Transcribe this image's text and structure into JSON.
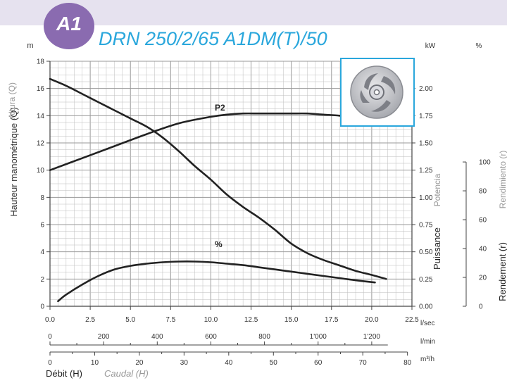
{
  "header": {
    "badge": "A1",
    "model": "DRN 250/2/65 A1DM(T)/50"
  },
  "icons": {
    "impeller": "impeller-icon"
  },
  "colors": {
    "accent": "#2aa7dc",
    "badge": "#8a6bb0",
    "band": "#e6e2ef",
    "curve": "#222222",
    "grid": "#bdbdbd",
    "label_grey": "#999999"
  },
  "labels": {
    "y_left_unit": "m",
    "y_left_main": "Hauteur manométrique (Q)",
    "y_left_alt": "Altura (Q)",
    "power_unit": "kW",
    "power_main": "Puissance",
    "power_alt": "Potencia",
    "eff_unit": "%",
    "eff_main": "Rendement  (r)",
    "eff_alt": "Rendimiento (r)",
    "x_main": "Débit (H)",
    "x_alt": "Caudal (H)",
    "unit_ls": "l/sec",
    "unit_lmin": "l/min",
    "unit_m3h": "m³/h",
    "curve_p2": "P2",
    "curve_eff": "%"
  },
  "chart_data": {
    "type": "line",
    "x_label": "Débit (H)",
    "x_unit": "l/sec",
    "xlim": [
      0,
      22.5
    ],
    "x_ticks": [
      "0.0",
      "2.5",
      "5.0",
      "7.5",
      "10.0",
      "12.5",
      "15.0",
      "17.5",
      "20.0",
      "22.5"
    ],
    "x_ticks_lmin": [
      {
        "v": 0,
        "label": "0"
      },
      {
        "v": 200,
        "label": "200"
      },
      {
        "v": 400,
        "label": "400"
      },
      {
        "v": 600,
        "label": "600"
      },
      {
        "v": 800,
        "label": "800"
      },
      {
        "v": 1000,
        "label": "1'000"
      },
      {
        "v": 1200,
        "label": "1'200"
      }
    ],
    "x_ticks_m3h": [
      "0",
      "10",
      "20",
      "30",
      "40",
      "50",
      "60",
      "70",
      "80"
    ],
    "y_head": {
      "label": "Hauteur manométrique (Q)",
      "unit": "m",
      "lim": [
        0,
        18
      ],
      "ticks": [
        "0",
        "2",
        "4",
        "6",
        "8",
        "10",
        "12",
        "14",
        "16",
        "18"
      ]
    },
    "y_power": {
      "label": "Puissance",
      "unit": "kW",
      "lim": [
        0,
        2.25
      ],
      "ticks": [
        "0.00",
        "0.25",
        "0.50",
        "0.75",
        "1.00",
        "1.25",
        "1.50",
        "1.75",
        "2.00"
      ]
    },
    "y_eff": {
      "label": "Rendement (r)",
      "unit": "%",
      "lim": [
        0,
        100
      ],
      "ticks": [
        "0",
        "20",
        "40",
        "60",
        "80",
        "100"
      ]
    },
    "grid": true,
    "series": [
      {
        "name": "",
        "axis": "head",
        "x": [
          0,
          1,
          2,
          3,
          4,
          5,
          6,
          7,
          8,
          9,
          10,
          11,
          12,
          13,
          14,
          15,
          16,
          17,
          18,
          19,
          20,
          20.9
        ],
        "y": [
          16.7,
          16.2,
          15.6,
          15.0,
          14.4,
          13.8,
          13.2,
          12.4,
          11.4,
          10.3,
          9.3,
          8.2,
          7.3,
          6.5,
          5.6,
          4.6,
          3.9,
          3.4,
          3.0,
          2.6,
          2.3,
          2.0
        ]
      },
      {
        "name": "P2",
        "axis": "power",
        "x": [
          0,
          2,
          4,
          6,
          8,
          10,
          11,
          12,
          13,
          14,
          15,
          16,
          17,
          18,
          19,
          20
        ],
        "y": [
          1.25,
          1.36,
          1.47,
          1.58,
          1.68,
          1.74,
          1.76,
          1.77,
          1.77,
          1.77,
          1.77,
          1.77,
          1.76,
          1.75,
          1.73,
          1.7
        ]
      },
      {
        "name": "%",
        "axis": "efficiency",
        "x": [
          0.5,
          1,
          2,
          3,
          4,
          5,
          6,
          7,
          8,
          9,
          10,
          11,
          12,
          13,
          14,
          15,
          16,
          17,
          18,
          19,
          20.2
        ],
        "y": [
          3.5,
          8,
          15,
          21,
          25.5,
          28,
          29.5,
          30.5,
          31,
          31,
          30.5,
          29.5,
          28.5,
          27,
          25.5,
          24,
          22.5,
          21,
          19.5,
          18,
          16.5
        ]
      }
    ]
  }
}
